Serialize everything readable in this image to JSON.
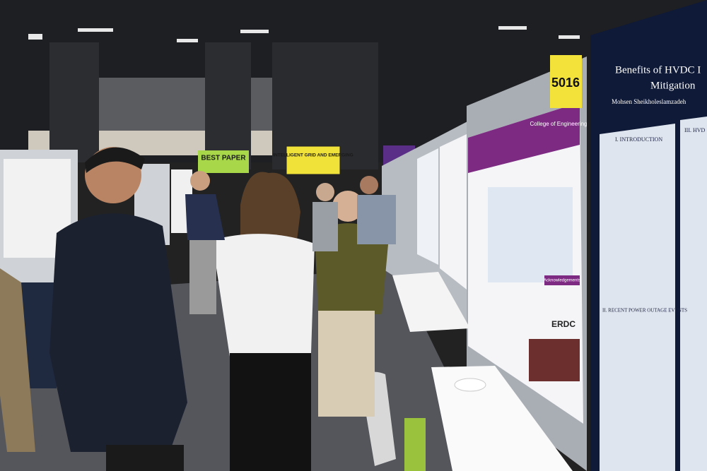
{
  "signs": [
    {
      "label": "BEST PAPER"
    },
    {
      "label": "INTELLIGENT GRID AND EMERGING"
    }
  ],
  "booth_number": "5016",
  "poster_left": {
    "header": "College of Engineering",
    "sponsor": "ERDC",
    "section": "Acknowledgements"
  },
  "poster_main": {
    "title": "Benefits of HVDC I",
    "title_line2": "Mitigation",
    "author": "Mohsen Sheikholeslamzadeh",
    "sections": [
      "I. INTRODUCTION",
      "II. RECENT POWER OUTAGE EVENTS",
      "III. HVD"
    ]
  }
}
